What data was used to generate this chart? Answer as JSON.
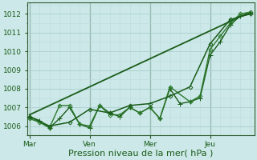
{
  "xlabel": "Pression niveau de la mer( hPa )",
  "background_color": "#cce8e8",
  "grid_color_major": "#aacece",
  "grid_color_minor": "#bbdddd",
  "line_dark": "#1a5c1a",
  "line_mid": "#2d7a2d",
  "ylim": [
    1005.5,
    1012.6
  ],
  "yticks": [
    1006,
    1007,
    1008,
    1009,
    1010,
    1011,
    1012
  ],
  "day_labels": [
    "Mar",
    "Ven",
    "Mer",
    "Jeu"
  ],
  "day_positions": [
    0,
    3,
    6,
    9
  ],
  "x_min": -0.1,
  "x_max": 11.2,
  "series": [
    {
      "x": [
        0,
        11
      ],
      "y": [
        1006.6,
        1012.1
      ],
      "marker": null,
      "lw": 1.3,
      "ms": 0,
      "zorder": 2
    },
    {
      "x": [
        0,
        0.5,
        1,
        1.5,
        2,
        2.5,
        3,
        3.5,
        4,
        4.5,
        5,
        5.5,
        6,
        6.5,
        7,
        7.5,
        8,
        8.5,
        9,
        9.5,
        10,
        10.5,
        11
      ],
      "y": [
        1006.5,
        1006.3,
        1005.9,
        1006.4,
        1007.0,
        1006.1,
        1005.9,
        1007.1,
        1006.7,
        1006.5,
        1007.0,
        1006.7,
        1007.0,
        1006.4,
        1008.0,
        1007.2,
        1007.3,
        1007.5,
        1009.8,
        1010.5,
        1011.4,
        1011.9,
        1012.0
      ],
      "marker": "+",
      "lw": 1.0,
      "ms": 4,
      "zorder": 3
    },
    {
      "x": [
        0,
        0.5,
        1,
        1.5,
        2,
        2.5,
        3,
        3.5,
        4,
        4.5,
        5,
        5.5,
        6,
        6.5,
        7,
        8,
        8.5,
        9,
        9.5,
        10,
        10.5,
        11
      ],
      "y": [
        1006.4,
        1006.2,
        1005.9,
        1007.1,
        1007.1,
        1006.1,
        1006.0,
        1007.1,
        1006.6,
        1006.6,
        1007.0,
        1006.7,
        1007.0,
        1006.4,
        1008.1,
        1007.3,
        1007.6,
        1010.1,
        1010.8,
        1011.5,
        1012.0,
        1012.1
      ],
      "marker": "D",
      "lw": 1.0,
      "ms": 2.5,
      "zorder": 3
    },
    {
      "x": [
        0,
        1,
        2,
        3,
        4,
        5,
        6,
        7,
        8,
        9,
        10,
        11
      ],
      "y": [
        1006.5,
        1006.0,
        1006.2,
        1006.9,
        1006.7,
        1007.1,
        1007.2,
        1007.6,
        1008.1,
        1010.4,
        1011.7,
        1012.0
      ],
      "marker": "D",
      "lw": 1.1,
      "ms": 2.5,
      "zorder": 3
    }
  ],
  "vlines_dark": [
    0,
    3,
    6,
    9
  ],
  "vline_color": "#2d5a2d",
  "spine_color": "#2d5a2d",
  "tick_label_color": "#1a5c1a",
  "xlabel_fontsize": 8,
  "tick_fontsize": 6.5
}
